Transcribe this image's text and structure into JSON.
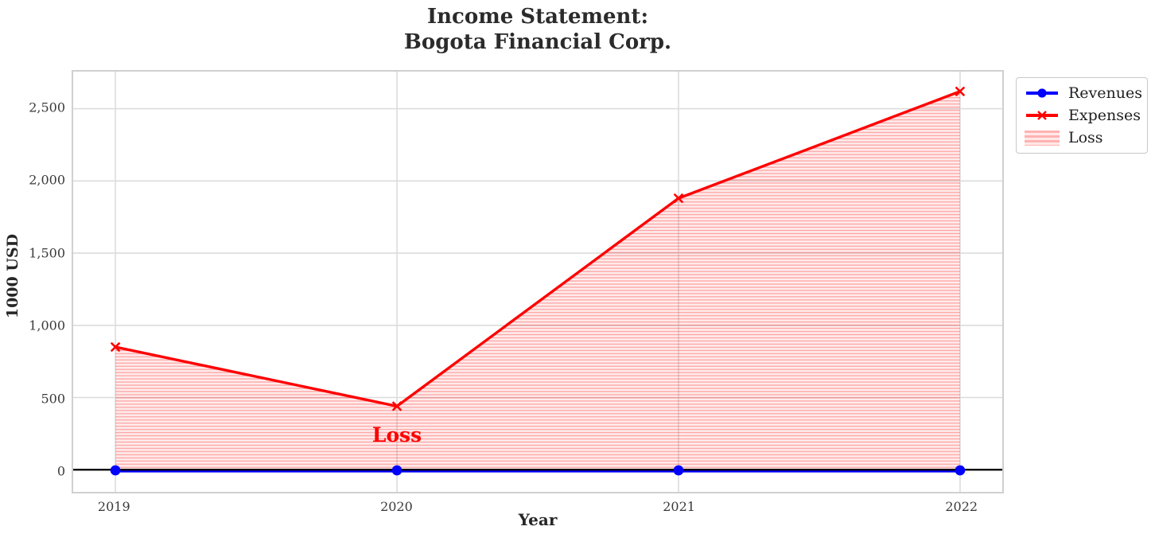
{
  "title": "Income Statement:\nBogota Financial Corp.",
  "chart_data": {
    "type": "line",
    "x": [
      2019,
      2020,
      2021,
      2022
    ],
    "xlim": [
      2018.85,
      2022.15
    ],
    "ylim": [
      -153,
      2757
    ],
    "series": [
      {
        "name": "Revenues",
        "color": "#0000ff",
        "marker": "circle",
        "values": [
          0,
          0,
          0,
          0
        ]
      },
      {
        "name": "Expenses",
        "color": "#ff0000",
        "marker": "x",
        "values": [
          850,
          440,
          1880,
          2620
        ]
      }
    ],
    "fill_between": {
      "label": "Loss",
      "between": [
        "Revenues",
        "Expenses"
      ],
      "style": "red-horizontal-hatch"
    },
    "zero_line": 0,
    "annotation": {
      "text": "Loss",
      "x": 2020,
      "y": 230,
      "color": "#ff0000"
    },
    "xlabel": "Year",
    "ylabel": "1000 USD",
    "xtick_labels": [
      "2019",
      "2020",
      "2021",
      "2022"
    ],
    "ytick_values": [
      0,
      500,
      1000,
      1500,
      2000,
      2500
    ],
    "ytick_labels": [
      "0",
      "500",
      "1,000",
      "1,500",
      "2,000",
      "2,500"
    ],
    "grid": true,
    "legend_position": "top-right-outside"
  },
  "colors": {
    "revenues_line": "#0000ff",
    "expenses_line": "#ff0000",
    "zero_line": "#000000",
    "grid": "#dcdcdc",
    "spine": "#d0d0d0",
    "title_text": "#2b2b2b"
  }
}
